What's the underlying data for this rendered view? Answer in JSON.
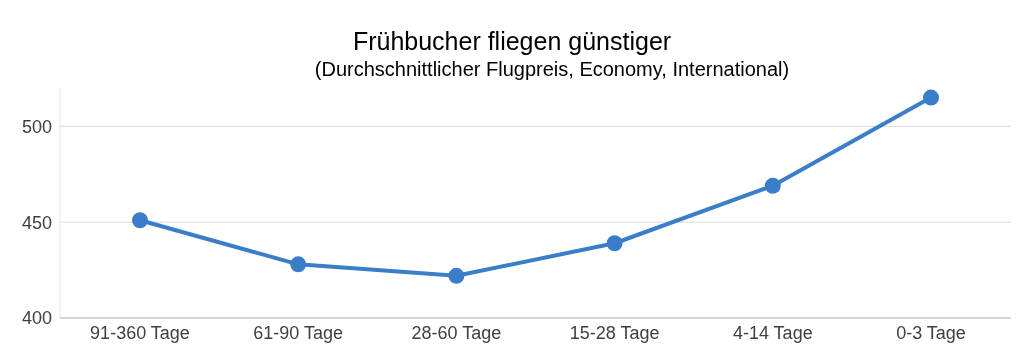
{
  "chart_data": {
    "type": "line",
    "title": "Frühbucher fliegen günstiger",
    "subtitle": "(Durchschnittlicher Flugpreis, Economy, International)",
    "categories": [
      "91-360 Tage",
      "61-90 Tage",
      "28-60 Tage",
      "15-28 Tage",
      "4-14 Tage",
      "0-3 Tage"
    ],
    "series": [
      {
        "color": "#3a7dc9",
        "values": [
          451,
          428,
          422,
          439,
          469,
          515
        ]
      }
    ],
    "ylim": [
      400,
      520
    ],
    "yticks": [
      400,
      450,
      500
    ],
    "grid": "y",
    "marker": "circle",
    "line_style": "solid"
  }
}
